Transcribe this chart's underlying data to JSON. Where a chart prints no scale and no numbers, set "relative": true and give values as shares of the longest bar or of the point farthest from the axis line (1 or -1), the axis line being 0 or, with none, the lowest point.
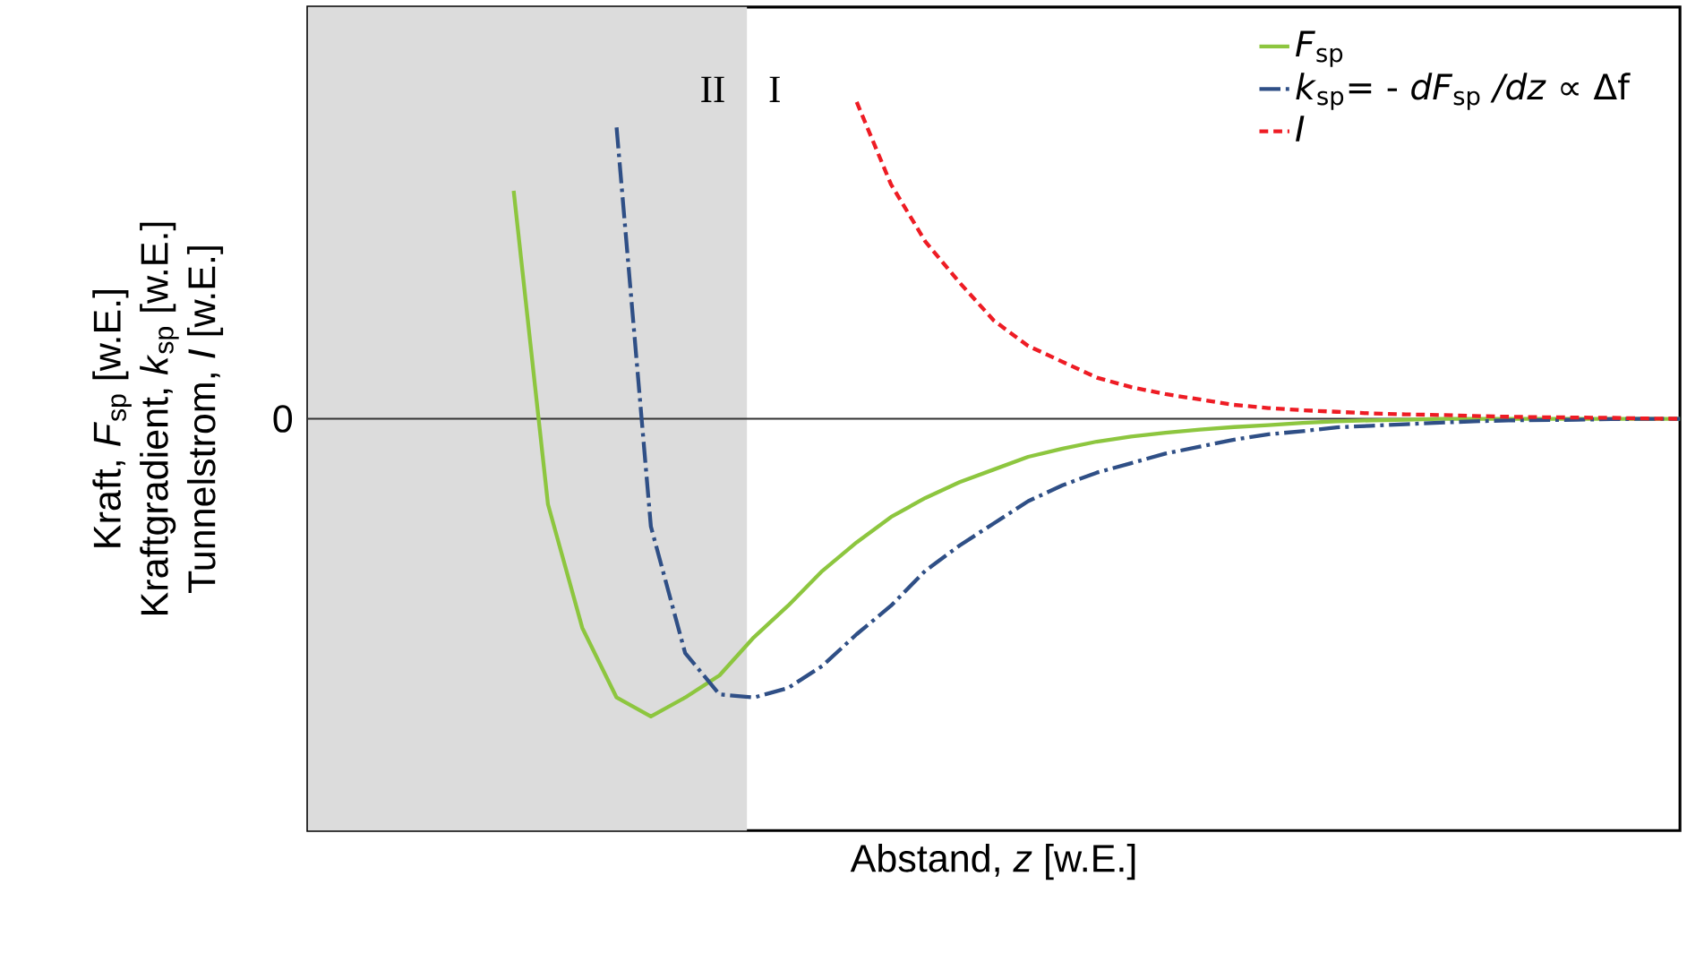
{
  "chart_data": {
    "type": "line",
    "relative": true,
    "xlabel": "Abstand, *z* [w.E.]",
    "ylabel": [
      "Kraft, *F*$_{sp}$ [w.E.]",
      "Kraftgradient, *k*$_{sp}$ [w.E.]",
      "Tunnelstrom, *I* [w.E.]"
    ],
    "categories": [
      null,
      null,
      null,
      null,
      null,
      null,
      null,
      null,
      null,
      null,
      null,
      null,
      null,
      null,
      null,
      null,
      null,
      null,
      null,
      null,
      null,
      null,
      null,
      null,
      null,
      null,
      null,
      null,
      null,
      null,
      null,
      null,
      null,
      null,
      null,
      null,
      null,
      null,
      null,
      null,
      null
    ],
    "series": [
      {
        "name": "*F*$_{sp}$",
        "color": "#8dc63f",
        "line_style": "solid",
        "values": [
          null,
          null,
          null,
          null,
          null,
          null,
          0.72,
          -0.27,
          -0.66,
          -0.88,
          -0.94,
          -0.88,
          -0.81,
          -0.69,
          -0.59,
          -0.48,
          -0.39,
          -0.31,
          -0.25,
          -0.2,
          -0.16,
          -0.12,
          -0.094,
          -0.072,
          -0.056,
          -0.044,
          -0.034,
          -0.026,
          -0.02,
          -0.013,
          -0.008,
          -0.005,
          -0.003,
          0,
          0,
          0,
          0,
          0,
          0,
          0,
          0
        ]
      },
      {
        "name": "*k*$_{sp}$= - *dF*$_{sp}$ */dz* ∝ Δf",
        "color": "#2f4f86",
        "line_style": "dashdot",
        "values": [
          null,
          null,
          null,
          null,
          null,
          null,
          null,
          null,
          null,
          0.92,
          -0.34,
          -0.74,
          -0.87,
          -0.88,
          -0.85,
          -0.78,
          -0.68,
          -0.59,
          -0.48,
          -0.4,
          -0.33,
          -0.26,
          -0.21,
          -0.17,
          -0.14,
          -0.11,
          -0.088,
          -0.066,
          -0.049,
          -0.039,
          -0.027,
          -0.022,
          -0.017,
          -0.012,
          -0.008,
          -0.005,
          -0.004,
          -0.003,
          -0.001,
          0,
          0
        ]
      },
      {
        "name": "*I*",
        "color": "#ee1c24",
        "line_style": "dashed",
        "values": [
          null,
          null,
          null,
          null,
          null,
          null,
          null,
          null,
          null,
          null,
          null,
          null,
          null,
          null,
          null,
          null,
          1,
          0.74,
          0.56,
          0.43,
          0.31,
          0.23,
          0.18,
          0.13,
          0.1,
          0.078,
          0.061,
          0.044,
          0.034,
          0.027,
          0.022,
          0.017,
          0.014,
          0.012,
          0.009,
          0.0065,
          0.005,
          0.004,
          0.003,
          0.001,
          0
        ]
      }
    ],
    "ref_lines": [
      {
        "axis": "y",
        "value": 0,
        "label": "0",
        "color": "#333333"
      }
    ],
    "annotations": [
      "II",
      "I"
    ],
    "legend": "top right"
  }
}
